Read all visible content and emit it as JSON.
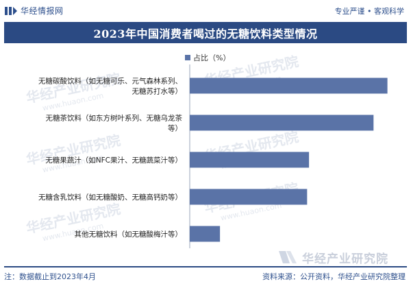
{
  "header": {
    "logo_text": "华经情报网",
    "slogan": "专业严谨 • 客观科学"
  },
  "title": "2023年中国消费者喝过的无糖饮料类型情况",
  "watermark": {
    "text": "华经产业研究院",
    "url": "www.huaon.com"
  },
  "brand_stamp": "华经产业研究院",
  "footer": {
    "note": "注：数据截止到2023年4月",
    "source": "资料来源：公开资料，华经产业研究院整理"
  },
  "colors": {
    "bar": "#5a73a7",
    "band": "#2b4a83",
    "text": "#2d4f8c"
  },
  "chart_data": {
    "type": "bar",
    "orientation": "horizontal",
    "title": "2023年中国消费者喝过的无糖饮料类型情况",
    "legend": [
      "占比（%）"
    ],
    "legend_position": "top",
    "categories": [
      [
        "无糖碳酸饮料（如无糖可乐、元气森林系列、",
        "无糖苏打水等）"
      ],
      [
        "无糖茶饮料（如东方树叶系列、无糖乌龙茶",
        "等）"
      ],
      [
        "无糖果蔬汁（如NFC果汁、无糖蔬菜汁等）"
      ],
      [
        "无糖含乳饮料（如无糖酸奶、无糖高钙奶等）"
      ],
      [
        "其他无糖饮料（如无糖酸梅汁等）"
      ]
    ],
    "series": [
      {
        "name": "占比（%）",
        "values": [
          72.6,
          67.5,
          43.8,
          43.1,
          11.1
        ]
      }
    ],
    "xlim": [
      0,
      80
    ],
    "grid": false,
    "axis_labels_visible": false
  }
}
